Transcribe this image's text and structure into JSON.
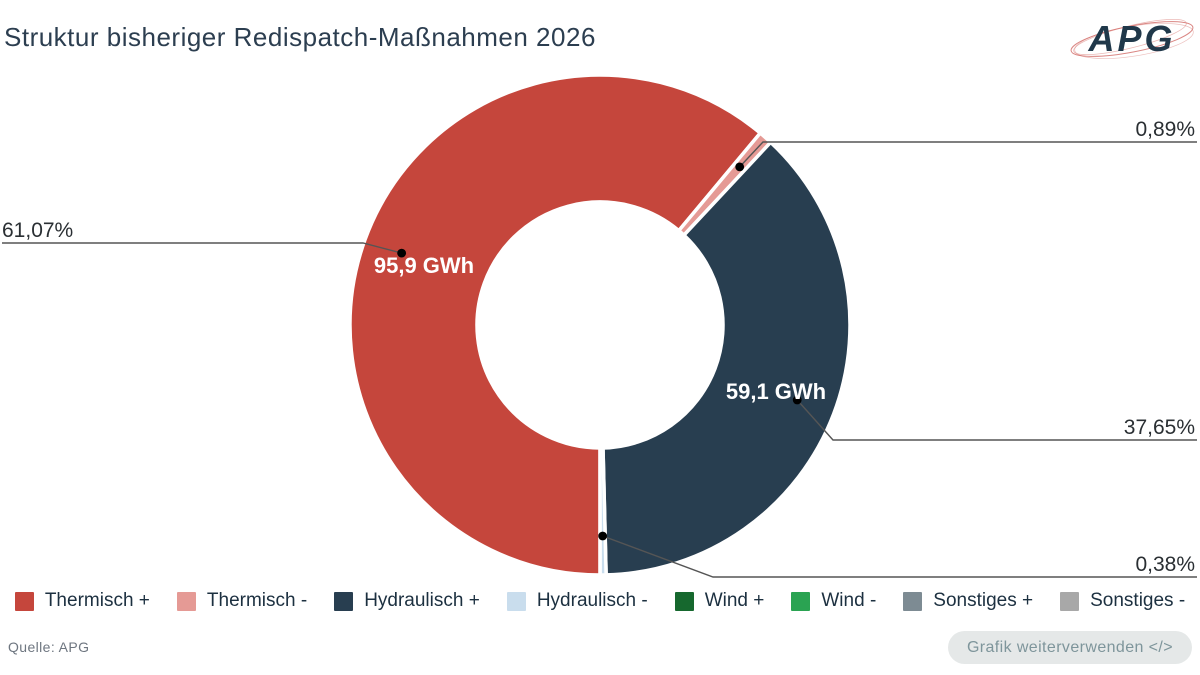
{
  "header": {
    "logo_text": "APG"
  },
  "chart_data": {
    "type": "pie",
    "donut": true,
    "title": "Struktur bisheriger Redispatch-Maßnahmen 2026",
    "unit": "GWh",
    "start_angle_deg": 180,
    "legend_position": "bottom",
    "series": [
      {
        "name": "Thermisch +",
        "percent": 61.07,
        "percent_label": "61,07%",
        "value_gwh": 95.9,
        "value_label": "95,9 GWh",
        "color": "#c5463c"
      },
      {
        "name": "Thermisch -",
        "percent": 0.89,
        "percent_label": "0,89%",
        "color": "#e59a95"
      },
      {
        "name": "Hydraulisch +",
        "percent": 37.65,
        "percent_label": "37,65%",
        "value_gwh": 59.1,
        "value_label": "59,1 GWh",
        "color": "#283e50"
      },
      {
        "name": "Hydraulisch -",
        "percent": 0.38,
        "percent_label": "0,38%",
        "color": "#c9dded"
      },
      {
        "name": "Wind +",
        "percent": 0,
        "color": "#16682e"
      },
      {
        "name": "Wind -",
        "percent": 0,
        "color": "#2aa352"
      },
      {
        "name": "Sonstiges +",
        "percent": 0,
        "color": "#7d8b93"
      },
      {
        "name": "Sonstiges -",
        "percent": 0,
        "color": "#a8a8a8"
      }
    ],
    "colors": {
      "label_text": "#2a2f33",
      "inner_label_text": "#ffffff",
      "leader_line": "#555555",
      "leader_dot": "#000000"
    }
  },
  "footer": {
    "source": "Quelle: APG",
    "reuse_button": "Grafik weiterverwenden </>"
  }
}
